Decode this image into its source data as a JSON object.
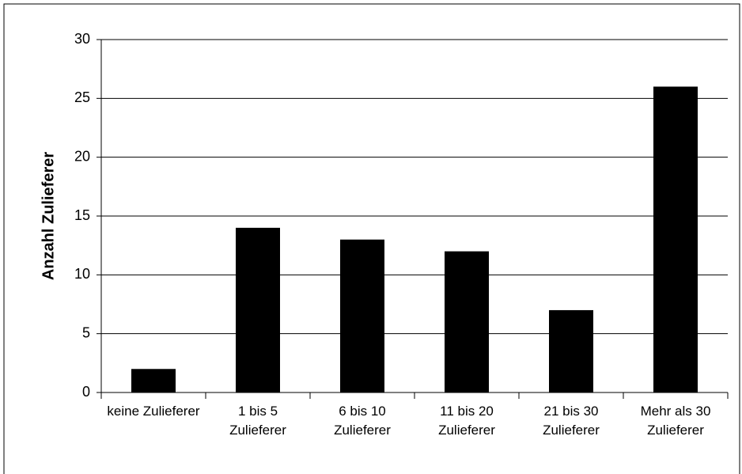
{
  "chart_data": {
    "type": "bar",
    "y_label": "Anzahl Zulieferer",
    "categories": [
      "keine Zulieferer",
      "1 bis 5 Zulieferer",
      "6 bis 10 Zulieferer",
      "11 bis 20 Zulieferer",
      "21 bis 30 Zulieferer",
      "Mehr als 30 Zulieferer"
    ],
    "values": [
      2,
      14,
      13,
      12,
      7,
      26
    ],
    "color": "#000000",
    "ylim": [
      0,
      30
    ],
    "yticks": [
      0,
      5,
      10,
      15,
      20,
      25,
      30
    ],
    "grid": true
  }
}
